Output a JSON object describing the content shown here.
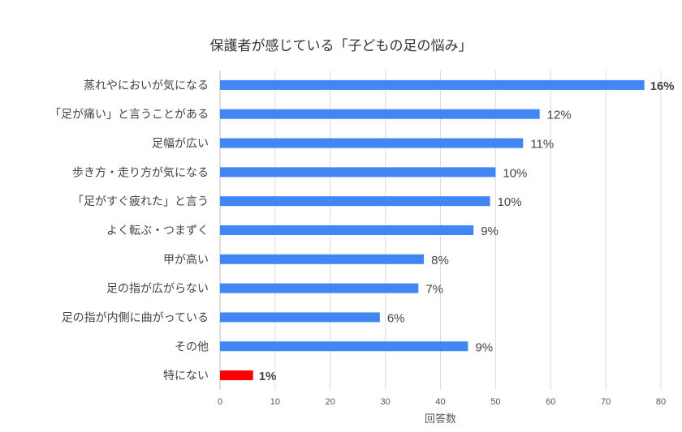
{
  "chart_data": {
    "type": "bar",
    "orientation": "horizontal",
    "title": "保護者が感じている「子どもの足の悩み」",
    "xlabel": "回答数",
    "ylabel": "",
    "xlim": [
      0,
      80
    ],
    "xticks": [
      0,
      10,
      20,
      30,
      40,
      50,
      60,
      70,
      80
    ],
    "grid": true,
    "categories": [
      "蒸れやにおいが気になる",
      "「足が痛い」と言うことがある",
      "足幅が広い",
      "歩き方・走り方が気になる",
      "「足がすぐ疲れた」と言う",
      "よく転ぶ・つまずく",
      "甲が高い",
      "足の指が広がらない",
      "足の指が内側に曲がっている",
      "その他",
      "特にない"
    ],
    "values": [
      77,
      58,
      55,
      50,
      49,
      46,
      37,
      36,
      29,
      45,
      6
    ],
    "data_labels": [
      "16%",
      "12%",
      "11%",
      "10%",
      "10%",
      "9%",
      "8%",
      "7%",
      "6%",
      "9%",
      "1%"
    ],
    "bar_colors": [
      "#4285f4",
      "#4285f4",
      "#4285f4",
      "#4285f4",
      "#4285f4",
      "#4285f4",
      "#4285f4",
      "#4285f4",
      "#4285f4",
      "#4285f4",
      "#ff0000"
    ],
    "label_colors": [
      "#333333",
      "#444444",
      "#444444",
      "#444444",
      "#444444",
      "#444444",
      "#444444",
      "#444444",
      "#444444",
      "#444444",
      "#ff0000"
    ],
    "bold_labels": [
      true,
      false,
      false,
      false,
      false,
      false,
      false,
      false,
      false,
      false,
      true
    ]
  }
}
